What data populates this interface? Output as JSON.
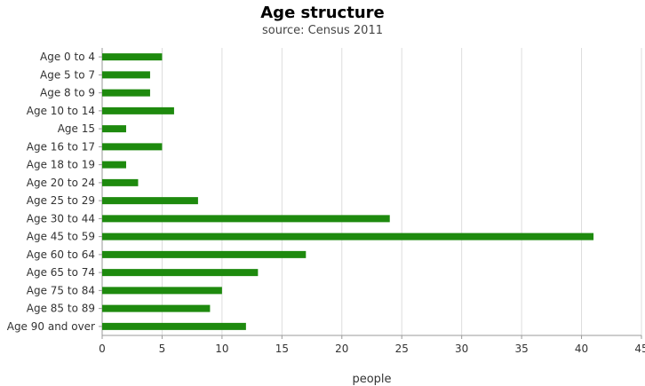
{
  "chart_data": {
    "type": "bar",
    "orientation": "horizontal",
    "title": "Age structure",
    "subtitle": "source: Census 2011",
    "xlabel": "people",
    "ylabel": "",
    "xlim": [
      0,
      45
    ],
    "xticks": [
      0,
      5,
      10,
      15,
      20,
      25,
      30,
      35,
      40,
      45
    ],
    "grid": true,
    "legend": "none",
    "bar_color": "#1e8a0e",
    "categories": [
      "Age 0 to 4",
      "Age 5 to 7",
      "Age 8 to 9",
      "Age 10 to 14",
      "Age 15",
      "Age 16 to 17",
      "Age 18 to 19",
      "Age 20 to 24",
      "Age 25 to 29",
      "Age 30 to 44",
      "Age 45 to 59",
      "Age 60 to 64",
      "Age 65 to 74",
      "Age 75 to 84",
      "Age 85 to 89",
      "Age 90 and over"
    ],
    "values": [
      5,
      4,
      4,
      6,
      2,
      5,
      2,
      3,
      8,
      24,
      41,
      17,
      13,
      10,
      9,
      12
    ]
  }
}
